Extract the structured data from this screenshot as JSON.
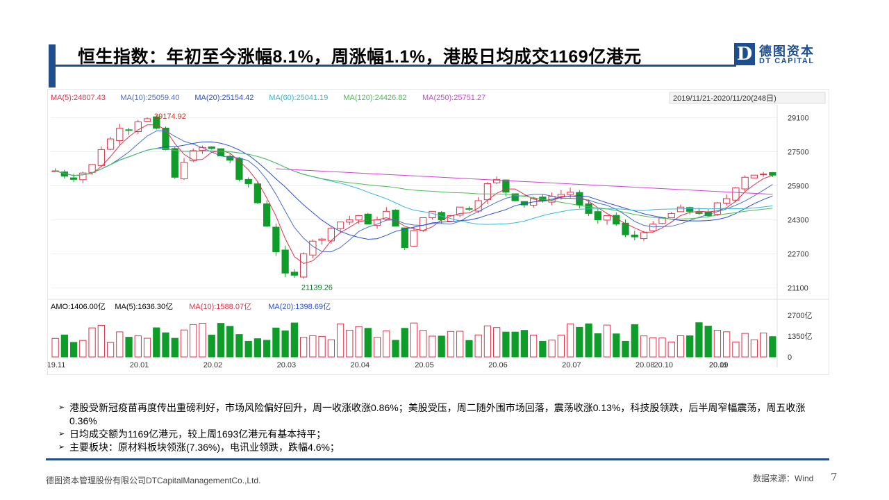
{
  "header": {
    "title": "恒生指数：年初至今涨幅8.1%，周涨幅1.1%，港股日均成交1169亿港元",
    "logo_mark": "D",
    "logo_cn": "德图资本",
    "logo_en": "DT CAPITAL"
  },
  "chart_data": {
    "type": "candlestick",
    "date_range": "2019/11/21-2020/11/20(248日)",
    "ma_legend": [
      {
        "label": "MA(5):24807.43",
        "color": "#e0324b"
      },
      {
        "label": "MA(10):25059.40",
        "color": "#4a6fc7"
      },
      {
        "label": "MA(20):25154.42",
        "color": "#2a4fd6"
      },
      {
        "label": "MA(60):25041.19",
        "color": "#33b8d8"
      },
      {
        "label": "MA(120):24426.82",
        "color": "#4dbb55"
      },
      {
        "label": "MA(250):25751.27",
        "color": "#d23fd8"
      }
    ],
    "price_ticks": [
      "29100",
      "27500",
      "25900",
      "24300",
      "22700",
      "21100"
    ],
    "ylim": [
      20700,
      29700
    ],
    "high_label": "29174.92",
    "low_label": "21139.26",
    "close_path": [
      [
        "19.11",
        26600
      ],
      [
        "",
        26350
      ],
      [
        "",
        26200
      ],
      [
        "",
        26500
      ],
      [
        "",
        26900
      ],
      [
        "",
        27600
      ],
      [
        "",
        28100
      ],
      [
        "",
        28600
      ],
      [
        "",
        28500
      ],
      [
        "20.01",
        28900
      ],
      [
        "",
        29050
      ],
      [
        "",
        28600
      ],
      [
        "",
        27600
      ],
      [
        "",
        26300
      ],
      [
        "",
        27000
      ],
      [
        "",
        27550
      ],
      [
        "",
        27700
      ],
      [
        "20.02",
        27650
      ],
      [
        "",
        27300
      ],
      [
        "",
        27100
      ],
      [
        "",
        26200
      ],
      [
        "",
        26000
      ],
      [
        "",
        25100
      ],
      [
        "",
        24000
      ],
      [
        "",
        22800
      ],
      [
        "20.03",
        21800
      ],
      [
        "",
        21700
      ],
      [
        "",
        22700
      ],
      [
        "",
        23300
      ],
      [
        "",
        23400
      ],
      [
        "",
        23900
      ],
      [
        "",
        24200
      ],
      [
        "",
        24300
      ],
      [
        "20.04",
        24500
      ],
      [
        "",
        24100
      ],
      [
        "",
        24300
      ],
      [
        "",
        24700
      ],
      [
        "",
        24000
      ],
      [
        "",
        23000
      ],
      [
        "",
        23800
      ],
      [
        "20.05",
        24400
      ],
      [
        "",
        24700
      ],
      [
        "",
        24300
      ],
      [
        "",
        24500
      ],
      [
        "",
        24900
      ],
      [
        "",
        24800
      ],
      [
        "",
        25200
      ],
      [
        "",
        26000
      ],
      [
        "20.06",
        26200
      ],
      [
        "",
        25600
      ],
      [
        "",
        25200
      ],
      [
        "",
        25000
      ],
      [
        "",
        25300
      ],
      [
        "",
        25200
      ],
      [
        "",
        25400
      ],
      [
        "",
        25500
      ],
      [
        "20.07",
        25600
      ],
      [
        "",
        25000
      ],
      [
        "",
        24600
      ],
      [
        "",
        24300
      ],
      [
        "",
        24500
      ],
      [
        "",
        24100
      ],
      [
        "",
        23600
      ],
      [
        "",
        23500
      ],
      [
        "20.08",
        23700
      ],
      [
        "",
        24100
      ],
      [
        "",
        24400
      ],
      [
        "",
        24600
      ],
      [
        "",
        24900
      ],
      [
        "",
        24700
      ],
      [
        "",
        24600
      ],
      [
        "",
        24500
      ],
      [
        "20.09",
        25100
      ],
      [
        "",
        25300
      ],
      [
        "",
        25800
      ],
      [
        "",
        26300
      ],
      [
        "",
        26400
      ],
      [
        "",
        26450
      ],
      [
        "",
        26400
      ]
    ],
    "candle_seed": 7,
    "ma_lines": [
      {
        "color": "#e0324b",
        "smooth": 3
      },
      {
        "color": "#4a6fc7",
        "smooth": 6
      },
      {
        "color": "#2a4fd6",
        "smooth": 11
      },
      {
        "color": "#33b8d8",
        "smooth": 26
      },
      {
        "color": "#4dbb55",
        "smooth": 45
      }
    ],
    "ma250_segment": {
      "color": "#d23fd8",
      "start": [
        24,
        26700
      ],
      "end": [
        99,
        25500
      ]
    },
    "volume_legend": [
      {
        "label": "AMO:1406.00亿",
        "color": "#000000"
      },
      {
        "label": "MA(5):1636.30亿",
        "color": "#000000"
      },
      {
        "label": "MA(10):1588.07亿",
        "color": "#e0324b"
      },
      {
        "label": "MA(20):1398.69亿",
        "color": "#2a4fd6"
      }
    ],
    "volume_ticks": [
      "2700亿",
      "1350亿",
      "0"
    ],
    "x_ticks": [
      "19.11",
      "20.01",
      "20.02",
      "20.03",
      "20.04",
      "20.05",
      "20.06",
      "20.07",
      "20.08",
      "20.09",
      "20.10",
      "20.11"
    ],
    "up_color": "#e0324b",
    "down_color": "#0f9d2a"
  },
  "bullets": [
    "港股受新冠疫苗再度传出重磅利好，市场风险偏好回升，周一收涨收涨0.86%；美股受压，周二随外围市场回落，震荡收涨0.13%，科技股领跌，后半周窄幅震荡，周五收涨0.36%",
    "日均成交额为1169亿港元，较上周1693亿港元有基本持平；",
    "主要板块：原材料板块领涨(7.36%)，电讯业领跌，跌幅4.6%；"
  ],
  "footer": {
    "company": "德图资本管理股份有限公司DTCapitalManagementCo.,Ltd.",
    "source": "数据来源：Wind",
    "page": "7"
  }
}
